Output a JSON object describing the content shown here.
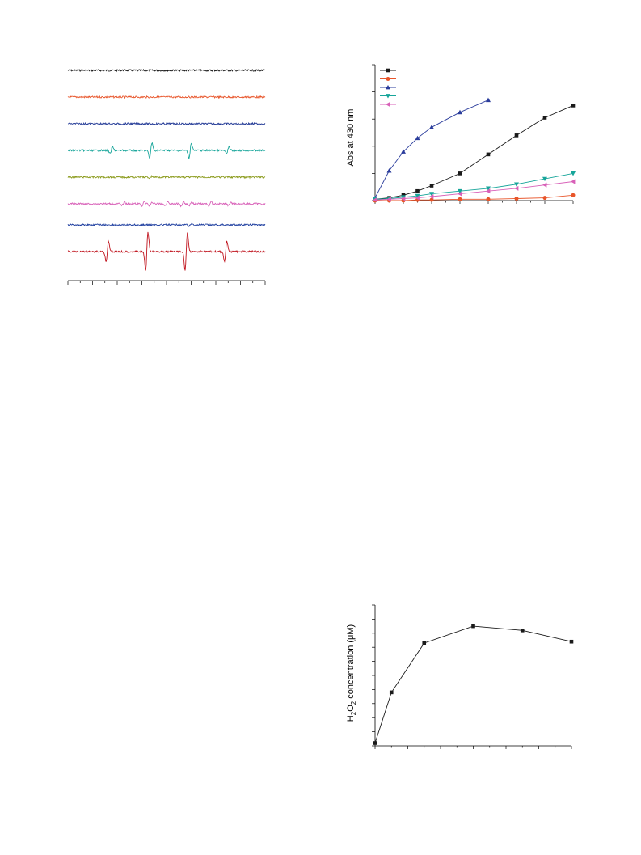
{
  "esr_panel": {
    "chart_data": {
      "type": "line",
      "description_free": true,
      "series": [
        {
          "color": "#1a1a1a",
          "peaks": []
        },
        {
          "color": "#e8552a",
          "peaks": []
        },
        {
          "color": "#233a96",
          "peaks": []
        },
        {
          "color": "#17a59a",
          "peaks": [
            [
              0.22,
              0.35
            ],
            [
              0.42,
              0.75
            ],
            [
              0.62,
              0.75
            ],
            [
              0.81,
              0.35
            ]
          ]
        },
        {
          "color": "#8a9a1a",
          "peaks": [
            [
              0.42,
              0.07
            ]
          ]
        },
        {
          "color": "#d860b8",
          "peaks": [
            [
              0.28,
              0.2
            ],
            [
              0.38,
              0.22
            ],
            [
              0.42,
              0.18
            ],
            [
              0.5,
              0.2
            ],
            [
              0.58,
              0.2
            ],
            [
              0.62,
              0.18
            ],
            [
              0.72,
              0.2
            ],
            [
              0.82,
              0.18
            ]
          ]
        },
        {
          "color": "#1f3fa0",
          "peaks": [
            [
              0.62,
              0.12
            ]
          ]
        },
        {
          "color": "#c0141e",
          "peaks": [
            [
              0.2,
              0.55
            ],
            [
              0.4,
              1.0
            ],
            [
              0.6,
              1.0
            ],
            [
              0.8,
              0.55
            ]
          ]
        }
      ],
      "x_ticks_count": 17,
      "grid": false
    }
  },
  "abs_panel": {
    "chart_data": {
      "type": "line",
      "ylabel": "Abs at 430 nm",
      "xlim": [
        0,
        14
      ],
      "ylim": [
        0,
        1.0
      ],
      "grid": false,
      "legend_placement": "top-left",
      "series": [
        {
          "color": "#1a1a1a",
          "marker": "square",
          "x": [
            0,
            1,
            2,
            3,
            4,
            6,
            8,
            10,
            12,
            14
          ],
          "y": [
            0.01,
            0.02,
            0.04,
            0.07,
            0.11,
            0.2,
            0.34,
            0.48,
            0.61,
            0.7
          ]
        },
        {
          "color": "#e8552a",
          "marker": "circle",
          "x": [
            0,
            1,
            2,
            3,
            4,
            6,
            8,
            10,
            12,
            14
          ],
          "y": [
            0.0,
            0.0,
            0.0,
            0.005,
            0.005,
            0.01,
            0.01,
            0.015,
            0.02,
            0.04
          ]
        },
        {
          "color": "#2b3d9c",
          "marker": "triangle-up",
          "x": [
            0,
            1,
            2,
            3,
            4,
            6,
            8
          ],
          "y": [
            0.02,
            0.22,
            0.36,
            0.46,
            0.54,
            0.65,
            0.74
          ]
        },
        {
          "color": "#17a59a",
          "marker": "triangle-down",
          "x": [
            0,
            1,
            2,
            3,
            4,
            6,
            8,
            10,
            12,
            14
          ],
          "y": [
            0.01,
            0.015,
            0.025,
            0.035,
            0.05,
            0.07,
            0.09,
            0.12,
            0.16,
            0.2
          ]
        },
        {
          "color": "#d860b8",
          "marker": "triangle-left",
          "x": [
            0,
            1,
            2,
            3,
            4,
            6,
            8,
            10,
            12,
            14
          ],
          "y": [
            0.005,
            0.01,
            0.015,
            0.02,
            0.03,
            0.05,
            0.07,
            0.09,
            0.115,
            0.14
          ]
        }
      ]
    }
  },
  "h2o2_panel": {
    "chart_data": {
      "type": "line",
      "ylabel": "H2O2 concentration (μM)",
      "ylabel_parts": {
        "a": "H",
        "b": "2",
        "c": "O",
        "d": "2",
        "e": " concentration (",
        "f": "μ",
        "g": "M)"
      },
      "xlim": [
        0,
        12
      ],
      "ylim": [
        0,
        1.0
      ],
      "grid": false,
      "series": [
        {
          "color": "#1a1a1a",
          "marker": "square",
          "x": [
            0,
            1,
            3,
            6,
            9,
            12
          ],
          "y": [
            0.02,
            0.38,
            0.73,
            0.85,
            0.82,
            0.74
          ]
        }
      ]
    }
  }
}
